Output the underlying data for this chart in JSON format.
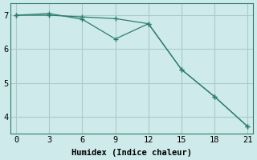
{
  "line1_x": [
    0,
    3,
    6,
    9,
    12,
    15,
    18,
    21
  ],
  "line1_y": [
    7.0,
    7.0,
    6.95,
    6.9,
    6.75,
    5.4,
    4.6,
    3.72
  ],
  "line2_x": [
    0,
    3,
    6,
    9,
    12,
    15,
    18,
    21
  ],
  "line2_y": [
    7.0,
    7.05,
    6.88,
    6.3,
    6.75,
    5.4,
    4.6,
    3.72
  ],
  "line_color": "#2e7d6e",
  "bg_color": "#ceeaea",
  "grid_color": "#aacaca",
  "xlabel": "Humidex (Indice chaleur)",
  "xlim": [
    -0.5,
    21.5
  ],
  "ylim": [
    3.5,
    7.35
  ],
  "xticks": [
    0,
    3,
    6,
    9,
    12,
    15,
    18,
    21
  ],
  "yticks": [
    4,
    5,
    6,
    7
  ],
  "xlabel_fontsize": 7.5,
  "tick_fontsize": 7.5
}
